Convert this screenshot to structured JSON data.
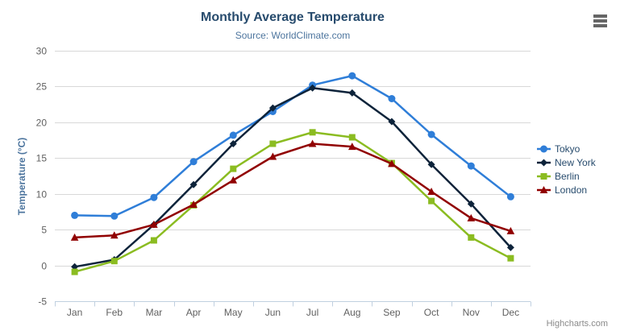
{
  "header": {
    "title": "Monthly Average Temperature",
    "subtitle": "Source: WorldClimate.com"
  },
  "credits": {
    "label": "Highcharts.com"
  },
  "context_menu": {
    "icon": "hamburger-menu-icon"
  },
  "axis_colors": {
    "grid_line": "#d8d8d8",
    "x_axis_line": "#c0d0e0",
    "tick_label": "#606060",
    "axis_title": "#4d759e",
    "title_text": "#274b6d",
    "subtitle_text": "#4d759e",
    "legend_text": "#274b6d"
  },
  "chart_data": {
    "type": "line",
    "title": "Monthly Average Temperature",
    "subtitle": "Source: WorldClimate.com",
    "categories": [
      "Jan",
      "Feb",
      "Mar",
      "Apr",
      "May",
      "Jun",
      "Jul",
      "Aug",
      "Sep",
      "Oct",
      "Nov",
      "Dec"
    ],
    "xlabel": "",
    "ylabel": "Temperature (°C)",
    "ylim": [
      -5,
      30
    ],
    "ytick_step": 5,
    "grid": true,
    "legend_position": "right",
    "series": [
      {
        "name": "Tokyo",
        "color": "#2f7ed8",
        "marker": "circle",
        "values": [
          7.0,
          6.9,
          9.5,
          14.5,
          18.2,
          21.5,
          25.2,
          26.5,
          23.3,
          18.3,
          13.9,
          9.6
        ]
      },
      {
        "name": "New York",
        "color": "#0d233a",
        "marker": "diamond",
        "values": [
          -0.2,
          0.8,
          5.7,
          11.3,
          17.0,
          22.0,
          24.8,
          24.1,
          20.1,
          14.1,
          8.6,
          2.5
        ]
      },
      {
        "name": "Berlin",
        "color": "#8bbc21",
        "marker": "square",
        "values": [
          -0.9,
          0.6,
          3.5,
          8.4,
          13.5,
          17.0,
          18.6,
          17.9,
          14.3,
          9.0,
          3.9,
          1.0
        ]
      },
      {
        "name": "London",
        "color": "#910000",
        "marker": "triangle",
        "values": [
          3.9,
          4.2,
          5.7,
          8.5,
          11.9,
          15.2,
          17.0,
          16.6,
          14.2,
          10.3,
          6.6,
          4.8
        ]
      }
    ]
  }
}
